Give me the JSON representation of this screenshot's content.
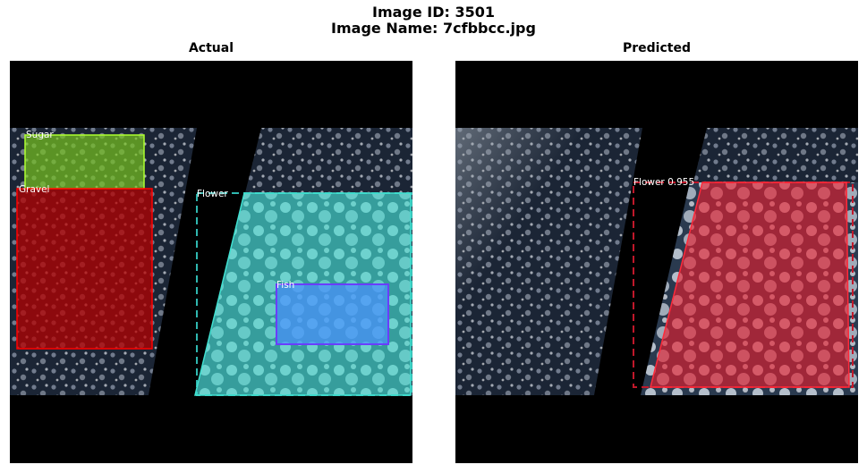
{
  "figure": {
    "image_id_line": "Image ID: 3501",
    "image_name_line": "Image Name: 7cfbbcc.jpg"
  },
  "panels": [
    {
      "title": "Actual",
      "boxes": [
        {
          "label": "Sugar",
          "color": "#9acd32"
        },
        {
          "label": "Gravel",
          "color": "#ff0000"
        },
        {
          "label": "Flower",
          "color": "#40e0d0"
        },
        {
          "label": "Fish",
          "color": "#6a3dff"
        }
      ]
    },
    {
      "title": "Predicted",
      "boxes": [
        {
          "label": "Flower 0.955",
          "color": "#ff3040"
        }
      ]
    }
  ]
}
